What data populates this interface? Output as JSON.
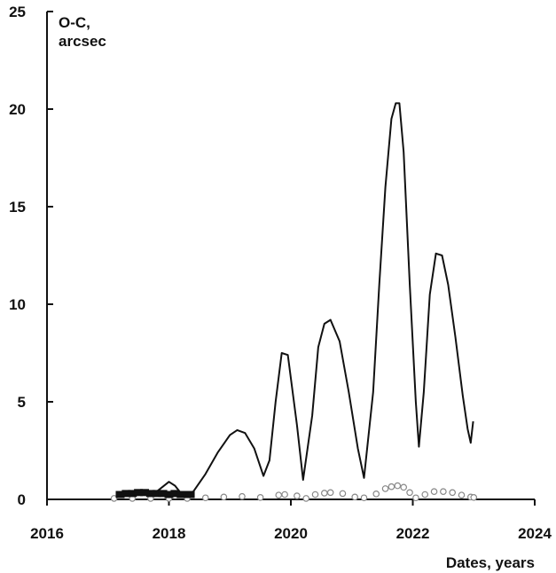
{
  "chart_data": {
    "type": "line",
    "title": "",
    "ylabel_line1": "O-C,",
    "ylabel_line2": "arcsec",
    "xlabel": "Dates, years",
    "xlim": [
      2016,
      2024
    ],
    "ylim": [
      0,
      25
    ],
    "x_ticks": [
      {
        "value": 2016,
        "label": "2016"
      },
      {
        "value": 2018,
        "label": "2018"
      },
      {
        "value": 2020,
        "label": "2020"
      },
      {
        "value": 2022,
        "label": "2022"
      },
      {
        "value": 2024,
        "label": "2024"
      }
    ],
    "y_ticks": [
      {
        "value": 0,
        "label": "0"
      },
      {
        "value": 5,
        "label": "5"
      },
      {
        "value": 10,
        "label": "10"
      },
      {
        "value": 15,
        "label": "15"
      },
      {
        "value": 20,
        "label": "20"
      },
      {
        "value": 25,
        "label": "25"
      }
    ],
    "grid": false,
    "legend": "none",
    "colors": {
      "line": "#111111",
      "markers": "#888888",
      "axis": "#111111"
    },
    "series": [
      {
        "style": "solid-line",
        "x": [
          2017.2,
          2017.4,
          2017.6,
          2017.8,
          2018.0,
          2018.1,
          2018.2,
          2018.4,
          2018.6,
          2018.8,
          2019.0,
          2019.12,
          2019.25,
          2019.4,
          2019.55,
          2019.65,
          2019.75,
          2019.85,
          2019.95,
          2020.1,
          2020.2,
          2020.35,
          2020.45,
          2020.55,
          2020.65,
          2020.8,
          2020.95,
          2021.1,
          2021.2,
          2021.35,
          2021.45,
          2021.55,
          2021.65,
          2021.72,
          2021.78,
          2021.85,
          2021.95,
          2022.05,
          2022.1,
          2022.18,
          2022.28,
          2022.38,
          2022.48,
          2022.58,
          2022.7,
          2022.82,
          2022.9,
          2022.95,
          2022.99
        ],
        "y": [
          0.2,
          0.3,
          0.3,
          0.4,
          0.9,
          0.7,
          0.3,
          0.4,
          1.3,
          2.4,
          3.3,
          3.55,
          3.4,
          2.6,
          1.2,
          2.0,
          5.0,
          7.5,
          7.4,
          3.8,
          1.0,
          4.3,
          7.8,
          9.0,
          9.2,
          8.1,
          5.5,
          2.6,
          1.1,
          5.5,
          11.0,
          16.0,
          19.5,
          20.3,
          20.3,
          17.8,
          11.0,
          5.0,
          2.7,
          5.5,
          10.5,
          12.6,
          12.5,
          11.0,
          8.3,
          5.3,
          3.6,
          2.9,
          4.0
        ]
      },
      {
        "style": "filled-markers",
        "x": [
          2017.2,
          2017.3,
          2017.4,
          2017.5,
          2017.6,
          2017.7,
          2017.8,
          2017.9,
          2018.0,
          2018.1,
          2018.2,
          2018.3,
          2018.35
        ],
        "y": [
          0.25,
          0.3,
          0.3,
          0.35,
          0.35,
          0.3,
          0.3,
          0.3,
          0.25,
          0.3,
          0.25,
          0.25,
          0.25
        ]
      },
      {
        "style": "open-circles",
        "x": [
          2017.1,
          2017.4,
          2017.7,
          2018.0,
          2018.3,
          2018.6,
          2018.9,
          2019.2,
          2019.5,
          2019.8,
          2019.9,
          2020.1,
          2020.25,
          2020.4,
          2020.55,
          2020.65,
          2020.85,
          2021.05,
          2021.2,
          2021.4,
          2021.55,
          2021.65,
          2021.75,
          2021.85,
          2021.95,
          2022.05,
          2022.2,
          2022.35,
          2022.5,
          2022.65,
          2022.8,
          2022.95,
          2023.0
        ],
        "y": [
          0.05,
          0.05,
          0.05,
          0.05,
          0.05,
          0.08,
          0.12,
          0.15,
          0.1,
          0.22,
          0.25,
          0.18,
          0.05,
          0.25,
          0.32,
          0.35,
          0.3,
          0.12,
          0.08,
          0.28,
          0.55,
          0.65,
          0.7,
          0.62,
          0.35,
          0.08,
          0.25,
          0.4,
          0.4,
          0.35,
          0.22,
          0.12,
          0.1
        ]
      }
    ]
  }
}
